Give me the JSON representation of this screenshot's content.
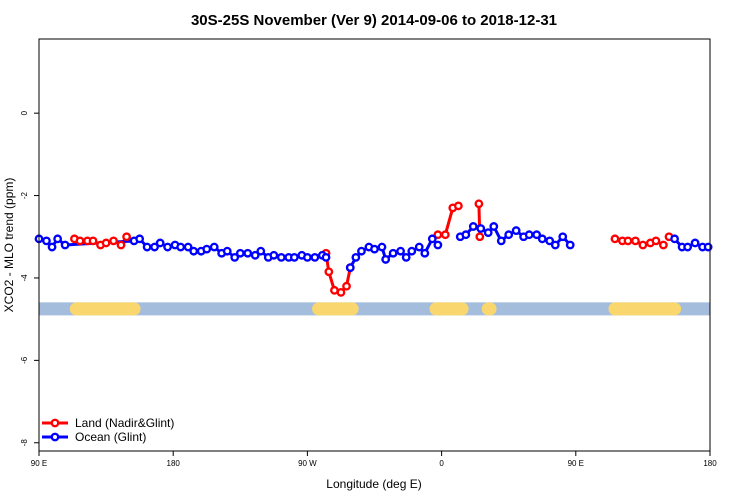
{
  "chart_data": {
    "type": "line",
    "title": "30S-25S November (Ver 9)   2014-09-06 to 2018-12-31",
    "xlabel": "Longitude (deg E)",
    "ylabel": "XCO2 - MLO trend (ppm)",
    "xlim": [
      90,
      450
    ],
    "ylim": [
      -8.2,
      1.8
    ],
    "x_ticks": [
      {
        "value": 90,
        "label": "90 E"
      },
      {
        "value": 162,
        "label": "180"
      },
      {
        "value": 234,
        "label": "90 W"
      },
      {
        "value": 306,
        "label": "0"
      },
      {
        "value": 378,
        "label": "90 E"
      },
      {
        "value": 450,
        "label": "180"
      }
    ],
    "y_ticks": [
      {
        "value": 0,
        "label": "0"
      },
      {
        "value": -2,
        "label": "-2"
      },
      {
        "value": -4,
        "label": "-4"
      },
      {
        "value": -6,
        "label": "-6"
      },
      {
        "value": -8,
        "label": "-8"
      }
    ],
    "landmask_y": -4.75,
    "land_segments": [
      [
        110,
        141
      ],
      [
        240,
        258
      ],
      [
        303,
        317
      ],
      [
        331,
        332
      ],
      [
        399,
        431
      ]
    ],
    "colors": {
      "land": "#ff0000",
      "ocean": "#0000ff",
      "mask_ocean": "#a5bddc",
      "mask_land": "#fad76e"
    },
    "series": [
      {
        "name": "Land (Nadir&Glint)",
        "color": "#ff0000",
        "segments": [
          [
            [
              109,
              -3.05
            ],
            [
              112,
              -3.1
            ],
            [
              116,
              -3.1
            ],
            [
              119,
              -3.1
            ],
            [
              123,
              -3.2
            ],
            [
              126,
              -3.15
            ],
            [
              130,
              -3.1
            ]
          ],
          [
            [
              134,
              -3.2
            ],
            [
              137,
              -3.0
            ]
          ],
          [
            [
              244,
              -3.4
            ],
            [
              245.5,
              -3.85
            ],
            [
              248.5,
              -4.3
            ],
            [
              252,
              -4.35
            ],
            [
              255,
              -4.2
            ],
            [
              257,
              -3.75
            ]
          ],
          [
            [
              304,
              -2.95
            ],
            [
              308,
              -2.95
            ],
            [
              312,
              -2.3
            ],
            [
              315,
              -2.25
            ]
          ],
          [
            [
              326,
              -2.2
            ],
            [
              326.5,
              -3.0
            ]
          ],
          [
            [
              399,
              -3.05
            ],
            [
              403,
              -3.1
            ],
            [
              406,
              -3.1
            ],
            [
              410,
              -3.1
            ],
            [
              414,
              -3.2
            ],
            [
              418,
              -3.15
            ],
            [
              421,
              -3.1
            ],
            [
              425,
              -3.2
            ]
          ],
          [
            [
              428,
              -3.0
            ]
          ]
        ]
      },
      {
        "name": "Ocean (Glint)",
        "color": "#0000ff",
        "segments": [
          [
            [
              90,
              -3.05
            ],
            [
              94,
              -3.1
            ],
            [
              97,
              -3.25
            ],
            [
              100,
              -3.05
            ],
            [
              104,
              -3.2
            ],
            [
              141,
              -3.1
            ],
            [
              144,
              -3.05
            ],
            [
              148,
              -3.25
            ],
            [
              152,
              -3.25
            ],
            [
              155,
              -3.15
            ],
            [
              159,
              -3.25
            ],
            [
              163,
              -3.2
            ],
            [
              166,
              -3.25
            ],
            [
              170,
              -3.25
            ],
            [
              173,
              -3.35
            ],
            [
              177,
              -3.35
            ],
            [
              180,
              -3.3
            ],
            [
              184,
              -3.25
            ],
            [
              188,
              -3.4
            ],
            [
              191,
              -3.35
            ],
            [
              195,
              -3.5
            ],
            [
              198,
              -3.4
            ],
            [
              202,
              -3.4
            ],
            [
              206,
              -3.45
            ],
            [
              209,
              -3.35
            ],
            [
              213,
              -3.5
            ],
            [
              216,
              -3.45
            ],
            [
              220,
              -3.5
            ],
            [
              224,
              -3.5
            ],
            [
              227,
              -3.5
            ],
            [
              231,
              -3.45
            ],
            [
              234,
              -3.5
            ],
            [
              238,
              -3.5
            ],
            [
              242,
              -3.45
            ],
            [
              244,
              -3.5
            ]
          ],
          [
            [
              257,
              -3.75
            ],
            [
              260,
              -3.5
            ],
            [
              263,
              -3.35
            ],
            [
              267,
              -3.25
            ],
            [
              270,
              -3.3
            ],
            [
              274,
              -3.25
            ],
            [
              276,
              -3.55
            ],
            [
              280,
              -3.4
            ],
            [
              284,
              -3.35
            ],
            [
              287,
              -3.5
            ],
            [
              290,
              -3.35
            ],
            [
              294,
              -3.25
            ],
            [
              297,
              -3.4
            ],
            [
              301,
              -3.05
            ],
            [
              304,
              -3.2
            ]
          ],
          [
            [
              316,
              -3.0
            ],
            [
              319,
              -2.95
            ],
            [
              323,
              -2.75
            ],
            [
              327,
              -2.8
            ],
            [
              331,
              -2.9
            ],
            [
              334,
              -2.75
            ],
            [
              338,
              -3.1
            ],
            [
              342,
              -2.95
            ],
            [
              346,
              -2.85
            ],
            [
              350,
              -3.0
            ],
            [
              353,
              -2.95
            ],
            [
              357,
              -2.95
            ],
            [
              360,
              -3.05
            ],
            [
              364,
              -3.1
            ],
            [
              367,
              -3.2
            ],
            [
              371,
              -3.0
            ],
            [
              375,
              -3.2
            ]
          ],
          [
            [
              431,
              -3.05
            ],
            [
              435,
              -3.25
            ],
            [
              438,
              -3.25
            ],
            [
              442,
              -3.15
            ],
            [
              446,
              -3.25
            ],
            [
              449,
              -3.25
            ]
          ]
        ]
      }
    ],
    "legend": {
      "position": "bottom-left",
      "entries": [
        "Land (Nadir&Glint)",
        "Ocean (Glint)"
      ]
    }
  }
}
